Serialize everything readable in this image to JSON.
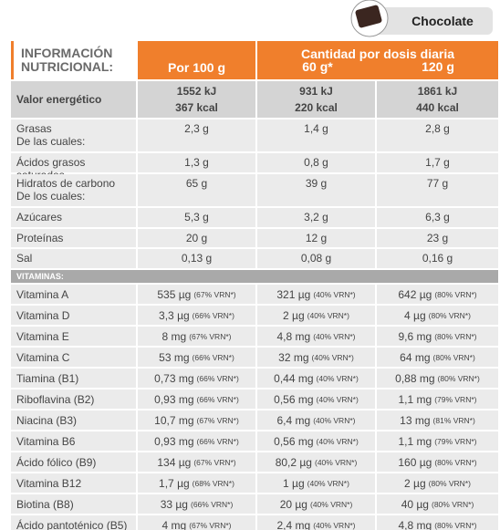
{
  "badge": "Chocolate",
  "header": {
    "title_line1": "INFORMACIÓN",
    "title_line2": "NUTRICIONAL:",
    "col1": "Por 100 g",
    "group": "Cantidad por dosis diaria",
    "col2": "60 g*",
    "col3": "120 g"
  },
  "energy": {
    "label": "Valor energético",
    "cells": [
      [
        "1552 kJ",
        "367 kcal"
      ],
      [
        "931 kJ",
        "220 kcal"
      ],
      [
        "1861 kJ",
        "440 kcal"
      ]
    ]
  },
  "rows": [
    {
      "label": [
        "Grasas",
        "De las cuales:"
      ],
      "cells": [
        "2,3 g",
        "1,4 g",
        "2,8 g"
      ]
    },
    {
      "label": [
        "Ácidos grasos saturados"
      ],
      "cells": [
        "1,3 g",
        "0,8 g",
        "1,7 g"
      ]
    },
    {
      "label": [
        "Hidratos de carbono",
        "De los cuales:"
      ],
      "cells": [
        "65 g",
        "39 g",
        "77 g"
      ]
    },
    {
      "label": [
        "Azúcares"
      ],
      "cells": [
        "5,3 g",
        "3,2 g",
        "6,3 g"
      ]
    },
    {
      "label": [
        "Proteínas"
      ],
      "cells": [
        "20 g",
        "12 g",
        "23 g"
      ]
    },
    {
      "label": [
        "Sal"
      ],
      "cells": [
        "0,13 g",
        "0,08 g",
        "0,16 g"
      ]
    }
  ],
  "vitamins_header": "VITAMINAS:",
  "vitamins": [
    {
      "label": "Vitamina A",
      "cells": [
        [
          "535 µg",
          "(67% VRN*)"
        ],
        [
          "321 µg",
          "(40% VRN*)"
        ],
        [
          "642 µg",
          "(80% VRN*)"
        ]
      ]
    },
    {
      "label": "Vitamina D",
      "cells": [
        [
          "3,3 µg",
          "(66% VRN*)"
        ],
        [
          "2 µg",
          "(40% VRN*)"
        ],
        [
          "4 µg",
          "(80% VRN*)"
        ]
      ]
    },
    {
      "label": "Vitamina E",
      "cells": [
        [
          "8 mg",
          "(67% VRN*)"
        ],
        [
          "4,8 mg",
          "(40% VRN*)"
        ],
        [
          "9,6 mg",
          "(80% VRN*)"
        ]
      ]
    },
    {
      "label": "Vitamina C",
      "cells": [
        [
          "53 mg",
          "(66% VRN*)"
        ],
        [
          "32 mg",
          "(40% VRN*)"
        ],
        [
          "64 mg",
          "(80% VRN*)"
        ]
      ]
    },
    {
      "label": "Tiamina (B1)",
      "cells": [
        [
          "0,73 mg",
          "(66% VRN*)"
        ],
        [
          "0,44 mg",
          "(40% VRN*)"
        ],
        [
          "0,88 mg",
          "(80% VRN*)"
        ]
      ]
    },
    {
      "label": "Riboflavina (B2)",
      "cells": [
        [
          "0,93 mg",
          "(66% VRN*)"
        ],
        [
          "0,56 mg",
          "(40% VRN*)"
        ],
        [
          "1,1 mg",
          "(79% VRN*)"
        ]
      ]
    },
    {
      "label": "Niacina (B3)",
      "cells": [
        [
          "10,7 mg",
          "(67% VRN*)"
        ],
        [
          "6,4 mg",
          "(40% VRN*)"
        ],
        [
          "13 mg",
          "(81% VRN*)"
        ]
      ]
    },
    {
      "label": "Vitamina B6",
      "cells": [
        [
          "0,93 mg",
          "(66% VRN*)"
        ],
        [
          "0,56 mg",
          "(40% VRN*)"
        ],
        [
          "1,1 mg",
          "(79% VRN*)"
        ]
      ]
    },
    {
      "label": "Ácido fólico (B9)",
      "cells": [
        [
          "134 µg",
          "(67% VRN*)"
        ],
        [
          "80,2 µg",
          "(40% VRN*)"
        ],
        [
          "160 µg",
          "(80% VRN*)"
        ]
      ]
    },
    {
      "label": "Vitamina B12",
      "cells": [
        [
          "1,7 µg",
          "(68% VRN*)"
        ],
        [
          "1 µg",
          "(40% VRN*)"
        ],
        [
          "2 µg",
          "(80% VRN*)"
        ]
      ]
    },
    {
      "label": "Biotina (B8)",
      "cells": [
        [
          "33 µg",
          "(66% VRN*)"
        ],
        [
          "20 µg",
          "(40% VRN*)"
        ],
        [
          "40 µg",
          "(80% VRN*)"
        ]
      ]
    },
    {
      "label": "Ácido pantoténico (B5)",
      "cells": [
        [
          "4 mg",
          "(67% VRN*)"
        ],
        [
          "2,4 mg",
          "(40% VRN*)"
        ],
        [
          "4,8 mg",
          "(80% VRN*)"
        ]
      ]
    }
  ]
}
